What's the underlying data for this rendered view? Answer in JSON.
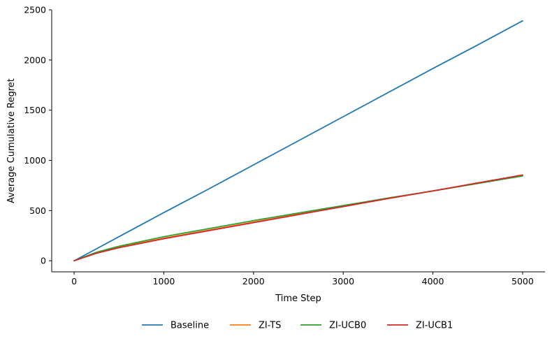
{
  "chart_data": {
    "type": "line",
    "title": "",
    "xlabel": "Time Step",
    "ylabel": "Average Cumulative Regret",
    "xlim": [
      -250,
      5250
    ],
    "ylim": [
      -110,
      2500
    ],
    "xticks": [
      0,
      1000,
      2000,
      3000,
      4000,
      5000
    ],
    "yticks": [
      0,
      500,
      1000,
      1500,
      2000,
      2500
    ],
    "grid": false,
    "legend_position": "bottom-center",
    "series": [
      {
        "name": "Baseline",
        "color": "#1f77b4",
        "x": [
          0,
          250,
          500,
          1000,
          1500,
          2000,
          2500,
          3000,
          3500,
          4000,
          4500,
          5000
        ],
        "y": [
          0,
          120,
          240,
          480,
          715,
          955,
          1195,
          1435,
          1675,
          1915,
          2150,
          2390
        ]
      },
      {
        "name": "ZI-TS",
        "color": "#ff7f0e",
        "x": [
          0,
          250,
          500,
          1000,
          1500,
          2000,
          2500,
          3000,
          3500,
          4000,
          4500,
          5000
        ],
        "y": [
          0,
          80,
          135,
          225,
          305,
          385,
          465,
          540,
          620,
          695,
          775,
          850
        ]
      },
      {
        "name": "ZI-UCB0",
        "color": "#2ca02c",
        "x": [
          0,
          250,
          500,
          1000,
          1500,
          2000,
          2500,
          3000,
          3500,
          4000,
          4500,
          5000
        ],
        "y": [
          0,
          85,
          145,
          240,
          320,
          400,
          475,
          550,
          625,
          695,
          770,
          845
        ]
      },
      {
        "name": "ZI-UCB1",
        "color": "#d62728",
        "x": [
          0,
          250,
          500,
          1000,
          1500,
          2000,
          2500,
          3000,
          3500,
          4000,
          4500,
          5000
        ],
        "y": [
          0,
          75,
          130,
          220,
          300,
          380,
          460,
          540,
          620,
          695,
          775,
          855
        ]
      }
    ]
  }
}
